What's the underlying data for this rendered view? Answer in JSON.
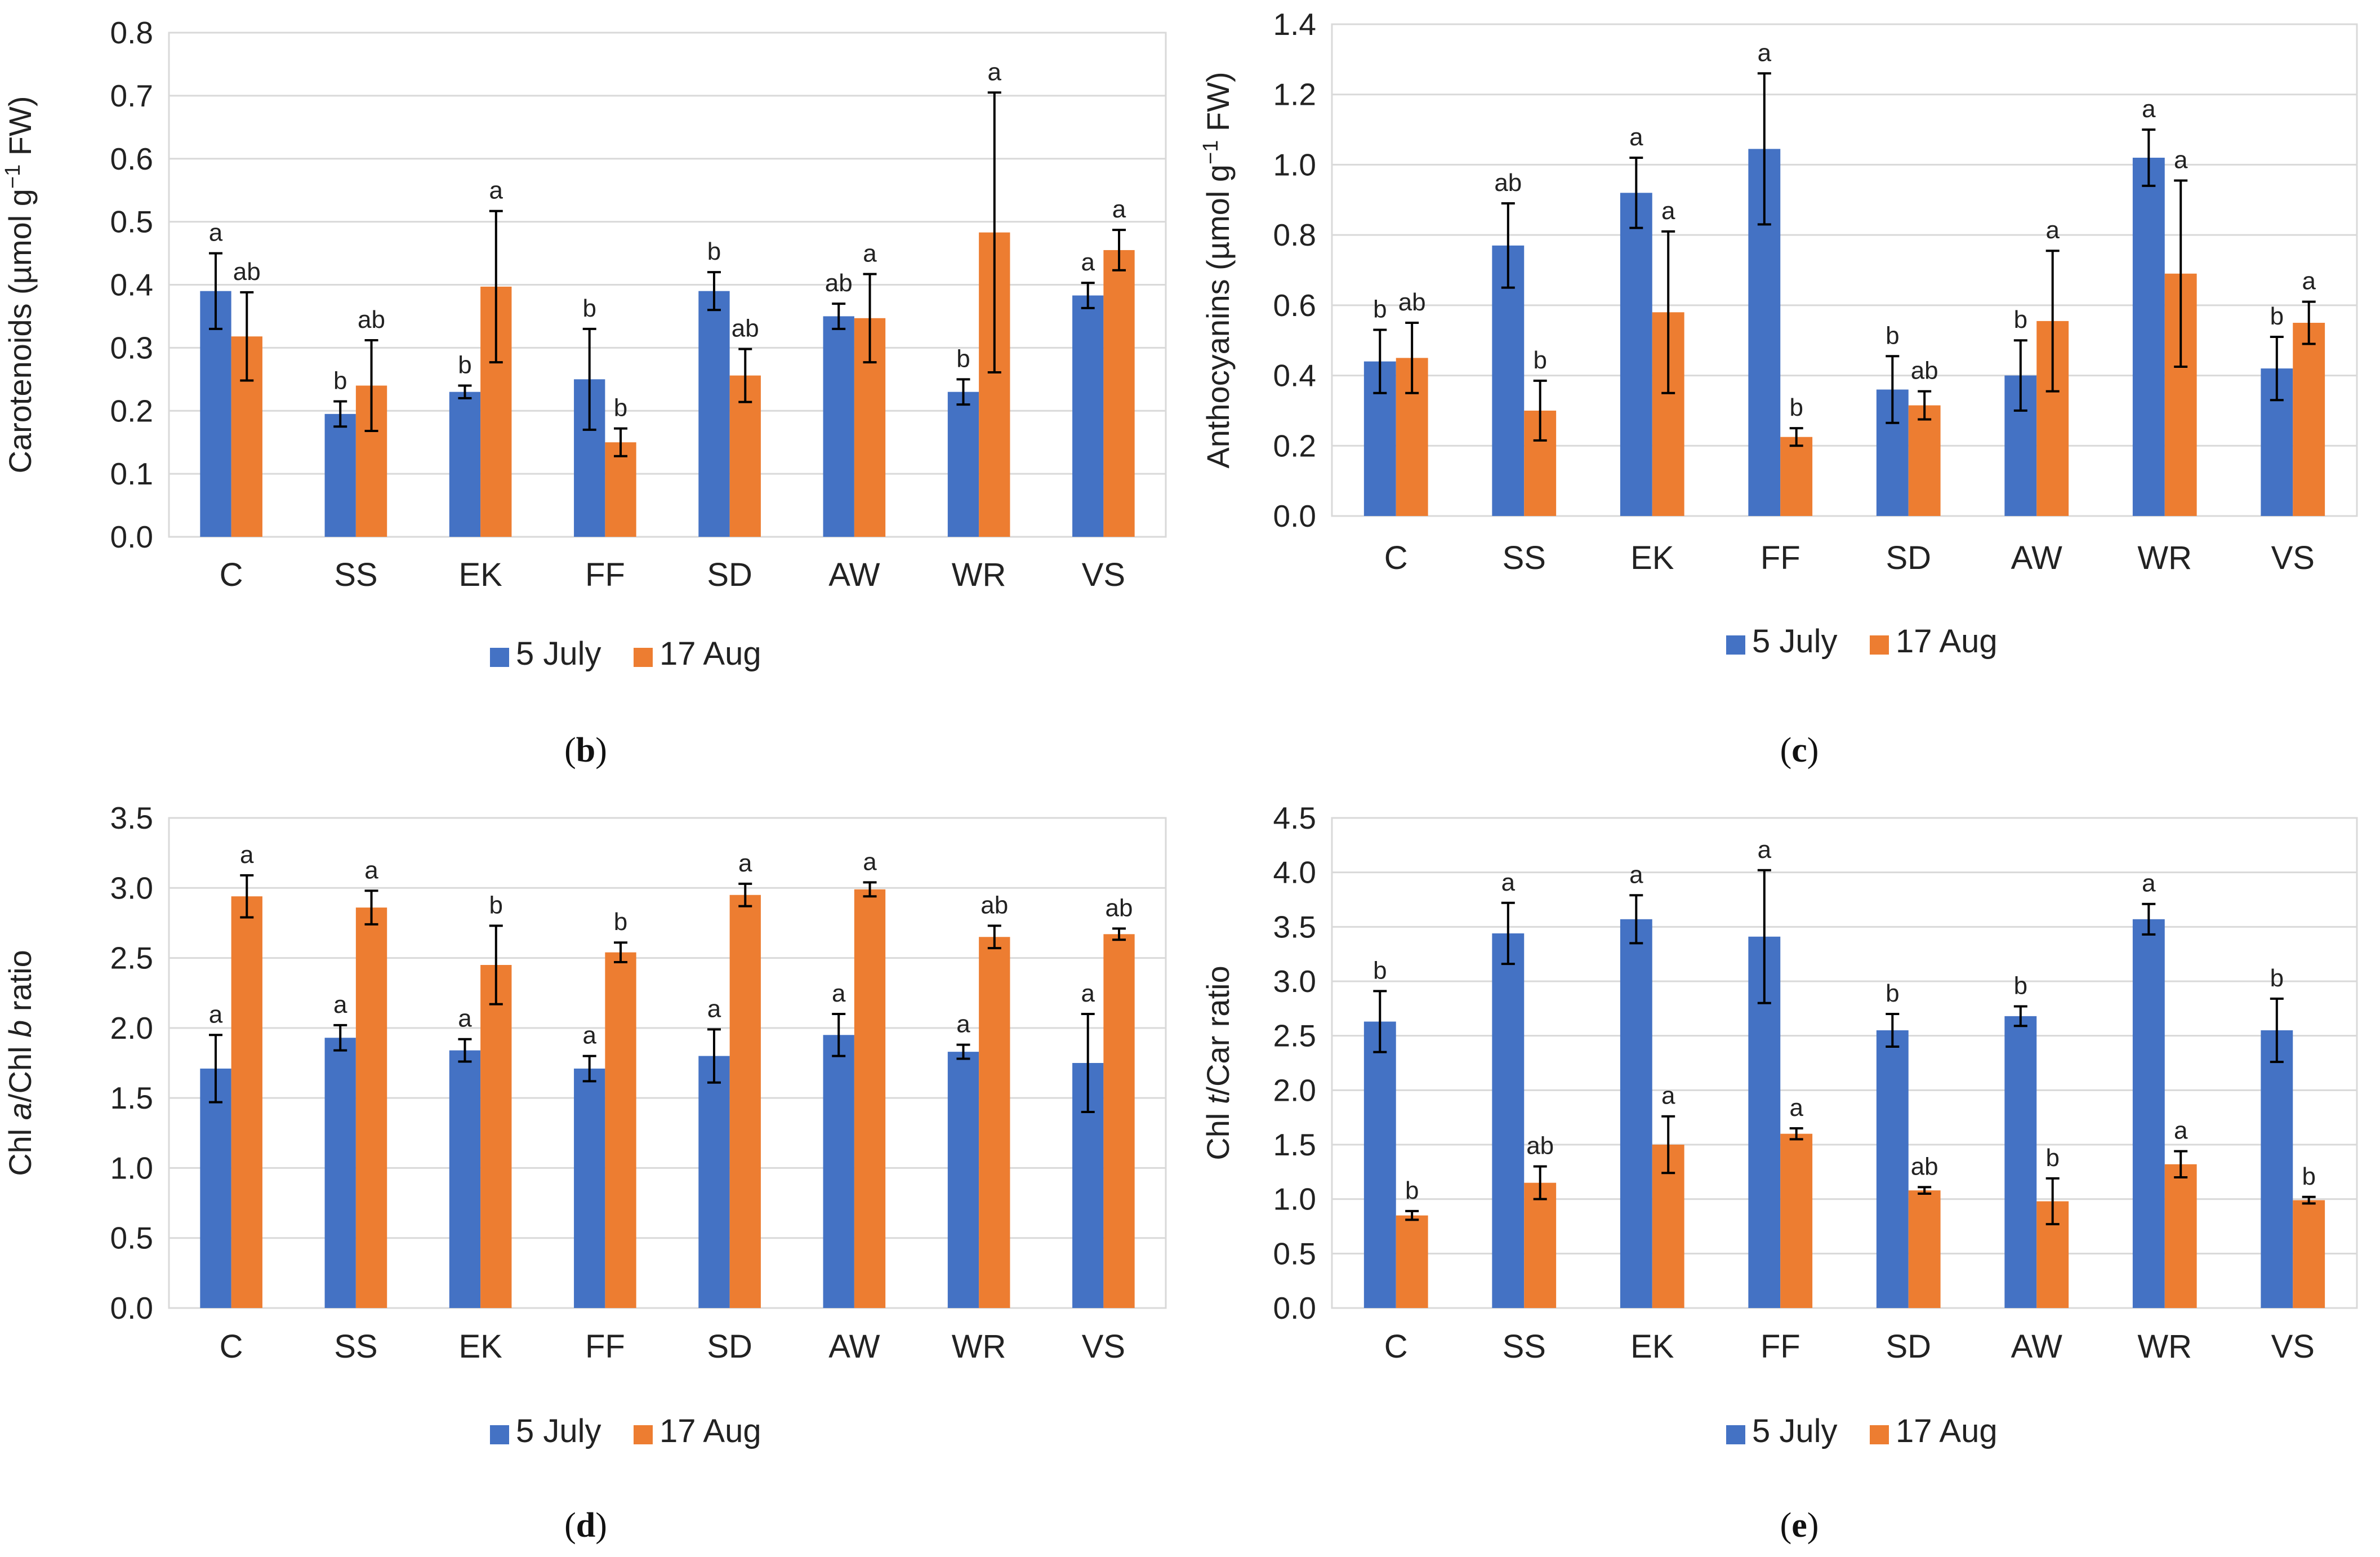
{
  "colors": {
    "series1": "#4472C4",
    "series2": "#ED7D31",
    "grid": "#D9D9D9",
    "error": "#000000"
  },
  "chart_data": [
    {
      "id": "b",
      "type": "bar",
      "panel_label": "b",
      "ylabel": {
        "pre": "Carotenoids (µmol g",
        "sup": "−1",
        "post": " FW)"
      },
      "categories": [
        "C",
        "SS",
        "EK",
        "FF",
        "SD",
        "AW",
        "WR",
        "VS"
      ],
      "ylim": [
        0,
        0.8
      ],
      "yticks": [
        "0.0",
        "0.1",
        "0.2",
        "0.3",
        "0.4",
        "0.5",
        "0.6",
        "0.7",
        "0.8"
      ],
      "series": [
        {
          "name": "5 July",
          "values": [
            0.39,
            0.195,
            0.23,
            0.25,
            0.39,
            0.35,
            0.23,
            0.383
          ],
          "errors": [
            0.06,
            0.02,
            0.01,
            0.08,
            0.03,
            0.02,
            0.02,
            0.02
          ],
          "labels": [
            "a",
            "b",
            "b",
            "b",
            "b",
            "ab",
            "b",
            "a"
          ]
        },
        {
          "name": "17 Aug",
          "values": [
            0.318,
            0.24,
            0.397,
            0.15,
            0.256,
            0.347,
            0.483,
            0.455
          ],
          "errors": [
            0.07,
            0.072,
            0.12,
            0.022,
            0.042,
            0.07,
            0.222,
            0.032
          ],
          "labels": [
            "ab",
            "ab",
            "a",
            "b",
            "ab",
            "a",
            "a",
            "a"
          ]
        }
      ]
    },
    {
      "id": "c",
      "type": "bar",
      "panel_label": "c",
      "ylabel": {
        "pre": "Anthocyanins (µmol g",
        "sup": "−1",
        "post": " FW)"
      },
      "categories": [
        "C",
        "SS",
        "EK",
        "FF",
        "SD",
        "AW",
        "WR",
        "VS"
      ],
      "ylim": [
        0,
        1.4
      ],
      "yticks": [
        "0.0",
        "0.2",
        "0.4",
        "0.6",
        "0.8",
        "1.0",
        "1.2",
        "1.4"
      ],
      "series": [
        {
          "name": "5 July",
          "values": [
            0.44,
            0.77,
            0.92,
            1.045,
            0.36,
            0.4,
            1.02,
            0.42
          ],
          "errors": [
            0.09,
            0.12,
            0.1,
            0.215,
            0.095,
            0.1,
            0.08,
            0.09
          ],
          "labels": [
            "b",
            "ab",
            "a",
            "a",
            "b",
            "b",
            "a",
            "b"
          ]
        },
        {
          "name": "17 Aug",
          "values": [
            0.45,
            0.3,
            0.58,
            0.225,
            0.315,
            0.555,
            0.69,
            0.55
          ],
          "errors": [
            0.1,
            0.085,
            0.23,
            0.025,
            0.04,
            0.2,
            0.265,
            0.06
          ],
          "labels": [
            "ab",
            "b",
            "a",
            "b",
            "ab",
            "a",
            "a",
            "a"
          ]
        }
      ]
    },
    {
      "id": "d",
      "type": "bar",
      "panel_label": "d",
      "ylabel": {
        "parts": [
          {
            "t": "Chl ",
            "i": false
          },
          {
            "t": "a",
            "i": true
          },
          {
            "t": "/Chl ",
            "i": false
          },
          {
            "t": "b",
            "i": true
          },
          {
            "t": " ratio",
            "i": false
          }
        ]
      },
      "categories": [
        "C",
        "SS",
        "EK",
        "FF",
        "SD",
        "AW",
        "WR",
        "VS"
      ],
      "ylim": [
        0,
        3.5
      ],
      "yticks": [
        "0.0",
        "0.5",
        "1.0",
        "1.5",
        "2.0",
        "2.5",
        "3.0",
        "3.5"
      ],
      "series": [
        {
          "name": "5 July",
          "values": [
            1.71,
            1.93,
            1.84,
            1.71,
            1.8,
            1.95,
            1.83,
            1.75
          ],
          "errors": [
            0.24,
            0.09,
            0.08,
            0.09,
            0.19,
            0.15,
            0.05,
            0.35
          ],
          "labels": [
            "a",
            "a",
            "a",
            "a",
            "a",
            "a",
            "a",
            "a"
          ]
        },
        {
          "name": "17 Aug",
          "values": [
            2.94,
            2.86,
            2.45,
            2.54,
            2.95,
            2.99,
            2.65,
            2.67
          ],
          "errors": [
            0.15,
            0.12,
            0.28,
            0.07,
            0.08,
            0.05,
            0.08,
            0.04
          ],
          "labels": [
            "a",
            "a",
            "b",
            "b",
            "a",
            "a",
            "ab",
            "ab"
          ]
        }
      ]
    },
    {
      "id": "e",
      "type": "bar",
      "panel_label": "e",
      "ylabel": {
        "parts": [
          {
            "t": "Chl ",
            "i": false
          },
          {
            "t": "t",
            "i": true
          },
          {
            "t": "/Car ratio",
            "i": false
          }
        ]
      },
      "categories": [
        "C",
        "SS",
        "EK",
        "FF",
        "SD",
        "AW",
        "WR",
        "VS"
      ],
      "ylim": [
        0,
        4.5
      ],
      "yticks": [
        "0.0",
        "0.5",
        "1.0",
        "1.5",
        "2.0",
        "2.5",
        "3.0",
        "3.5",
        "4.0",
        "4.5"
      ],
      "series": [
        {
          "name": "5 July",
          "values": [
            2.63,
            3.44,
            3.57,
            3.41,
            2.55,
            2.68,
            3.57,
            2.55
          ],
          "errors": [
            0.28,
            0.28,
            0.22,
            0.61,
            0.15,
            0.09,
            0.14,
            0.29
          ],
          "labels": [
            "b",
            "a",
            "a",
            "a",
            "b",
            "b",
            "a",
            "b"
          ]
        },
        {
          "name": "17 Aug",
          "values": [
            0.85,
            1.15,
            1.5,
            1.6,
            1.08,
            0.98,
            1.32,
            0.99
          ],
          "errors": [
            0.04,
            0.15,
            0.26,
            0.05,
            0.03,
            0.21,
            0.12,
            0.03
          ],
          "labels": [
            "b",
            "ab",
            "a",
            "a",
            "ab",
            "b",
            "a",
            "b"
          ]
        }
      ]
    }
  ]
}
